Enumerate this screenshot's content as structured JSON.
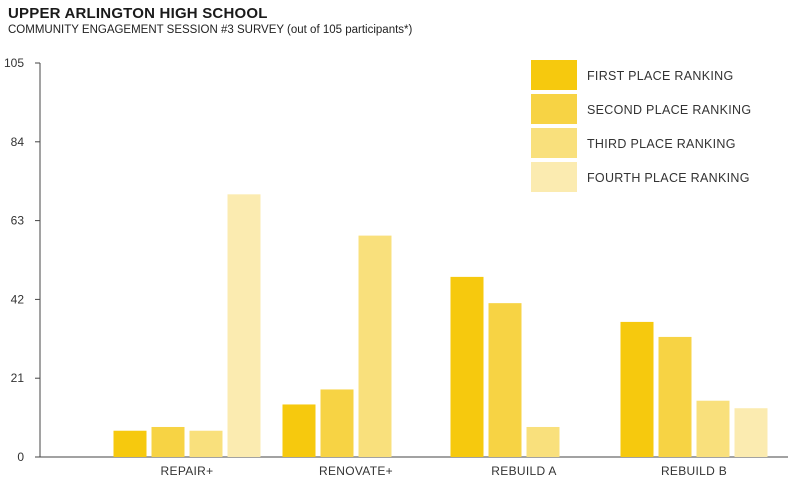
{
  "header": {
    "title": "UPPER ARLINGTON HIGH SCHOOL",
    "subtitle": "COMMUNITY ENGAGEMENT SESSION #3 SURVEY (out of 105 participants*)"
  },
  "chart_data": {
    "type": "bar",
    "title": "UPPER ARLINGTON HIGH SCHOOL",
    "subtitle": "COMMUNITY ENGAGEMENT SESSION #3 SURVEY (out of 105 participants*)",
    "categories": [
      "REPAIR+",
      "RENOVATE+",
      "REBUILD A",
      "REBUILD B"
    ],
    "series": [
      {
        "name": "FIRST PLACE RANKING",
        "color": "#F6C90E",
        "values": [
          7,
          14,
          48,
          36
        ]
      },
      {
        "name": "SECOND PLACE RANKING",
        "color": "#F7D344",
        "values": [
          8,
          18,
          41,
          32
        ]
      },
      {
        "name": "THIRD PLACE RANKING",
        "color": "#F9E07C",
        "values": [
          7,
          59,
          8,
          15
        ]
      },
      {
        "name": "FOURTH PLACE RANKING",
        "color": "#FBEBB0",
        "values": [
          70,
          0,
          0,
          13
        ]
      }
    ],
    "yticks": [
      0,
      21,
      42,
      63,
      84,
      105
    ],
    "ylim": [
      0,
      105
    ],
    "xlabel": "",
    "ylabel": "",
    "grid": false,
    "legend": "top-right"
  }
}
